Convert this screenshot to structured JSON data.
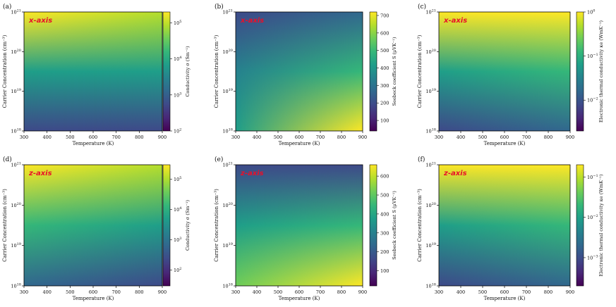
{
  "colors": {
    "viridis": [
      "#440154",
      "#482878",
      "#3e4a89",
      "#31688e",
      "#26828e",
      "#1f9e89",
      "#35b779",
      "#6dcd59",
      "#b4de2c",
      "#fde725"
    ],
    "tag": "#e8102a"
  },
  "shared": {
    "xlabel": "Temperature (K)",
    "ylabel": "Carrier Concentration (cm⁻³)",
    "xticks": [
      "300",
      "400",
      "500",
      "600",
      "700",
      "800",
      "900"
    ],
    "ytick_base": "10",
    "ytick_exponents": [
      "18",
      "19",
      "20",
      "21"
    ]
  },
  "chart_data": [
    {
      "type": "heatmap",
      "panel": "(a)",
      "tag": "x-axis",
      "x": [
        300,
        900
      ],
      "y_log10": [
        18,
        21
      ],
      "title": "",
      "xlabel": "Temperature (K)",
      "ylabel": "Carrier Concentration (cm⁻³)",
      "colorbar": {
        "label": "Conductivity σ (Sm⁻¹)",
        "scale": "log",
        "range": [
          100,
          200000
        ],
        "ticks": [
          {
            "value": 100,
            "base": "10",
            "exp": "2"
          },
          {
            "value": 1000,
            "base": "10",
            "exp": "3"
          },
          {
            "value": 10000,
            "base": "10",
            "exp": "4"
          },
          {
            "value": 100000,
            "base": "10",
            "exp": "5"
          }
        ]
      },
      "field": {
        "color_at": {
          "bottom_left": 0.25,
          "bottom_right": 0.18,
          "top_left": 0.97,
          "top_right": 0.93
        }
      }
    },
    {
      "type": "heatmap",
      "panel": "(b)",
      "tag": "x-axis",
      "x": [
        300,
        900
      ],
      "y_log10": [
        18,
        21
      ],
      "title": "",
      "xlabel": "Temperature (K)",
      "ylabel": "Carrier Concentration (cm⁻³)",
      "colorbar": {
        "label": "Seebeck coefficient S (μVK⁻¹)",
        "scale": "linear",
        "range": [
          40,
          720
        ],
        "ticks": [
          {
            "value": 100,
            "text": "100"
          },
          {
            "value": 200,
            "text": "200"
          },
          {
            "value": 300,
            "text": "300"
          },
          {
            "value": 400,
            "text": "400"
          },
          {
            "value": 500,
            "text": "500"
          },
          {
            "value": 600,
            "text": "600"
          },
          {
            "value": 700,
            "text": "700"
          }
        ]
      },
      "field": {
        "color_at": {
          "bottom_left": 0.6,
          "bottom_right": 0.98,
          "top_left": 0.22,
          "top_right": 0.3
        }
      }
    },
    {
      "type": "heatmap",
      "panel": "(c)",
      "tag": "x-axis",
      "x": [
        300,
        900
      ],
      "y_log10": [
        18,
        21
      ],
      "title": "",
      "xlabel": "Temperature (K)",
      "ylabel": "Carrier Concentration (cm⁻³)",
      "colorbar": {
        "label": "Electronic thermal conductivity κe (WmK⁻¹)",
        "scale": "log",
        "range": [
          0.002,
          1.0
        ],
        "ticks": [
          {
            "value": 0.01,
            "base": "10",
            "exp": "−2"
          },
          {
            "value": 0.1,
            "base": "10",
            "exp": "−1"
          },
          {
            "value": 1.0,
            "base": "10",
            "exp": "0"
          }
        ]
      },
      "field": {
        "color_at": {
          "bottom_left": 0.22,
          "bottom_right": 0.28,
          "top_left": 0.97,
          "top_right": 0.97
        }
      }
    },
    {
      "type": "heatmap",
      "panel": "(d)",
      "tag": "z-axis",
      "x": [
        300,
        900
      ],
      "y_log10": [
        18,
        21
      ],
      "title": "",
      "xlabel": "Temperature (K)",
      "ylabel": "Carrier Concentration (cm⁻³)",
      "colorbar": {
        "label": "Conductivity σ (Sm⁻¹)",
        "scale": "log",
        "range": [
          30,
          300000
        ],
        "ticks": [
          {
            "value": 100,
            "base": "10",
            "exp": "2"
          },
          {
            "value": 1000,
            "base": "10",
            "exp": "3"
          },
          {
            "value": 10000,
            "base": "10",
            "exp": "4"
          },
          {
            "value": 100000,
            "base": "10",
            "exp": "5"
          }
        ]
      },
      "field": {
        "color_at": {
          "bottom_left": 0.32,
          "bottom_right": 0.22,
          "top_left": 0.97,
          "top_right": 0.92
        }
      }
    },
    {
      "type": "heatmap",
      "panel": "(e)",
      "tag": "z-axis",
      "x": [
        300,
        900
      ],
      "y_log10": [
        18,
        21
      ],
      "title": "",
      "xlabel": "Temperature (K)",
      "ylabel": "Carrier Concentration (cm⁻³)",
      "colorbar": {
        "label": "Seebeck coefficient S (μVK⁻¹)",
        "scale": "linear",
        "range": [
          20,
          660
        ],
        "ticks": [
          {
            "value": 100,
            "text": "100"
          },
          {
            "value": 200,
            "text": "200"
          },
          {
            "value": 300,
            "text": "300"
          },
          {
            "value": 400,
            "text": "400"
          },
          {
            "value": 500,
            "text": "500"
          },
          {
            "value": 600,
            "text": "600"
          }
        ]
      },
      "field": {
        "color_at": {
          "bottom_left": 0.82,
          "bottom_right": 0.98,
          "top_left": 0.2,
          "top_right": 0.25
        }
      }
    },
    {
      "type": "heatmap",
      "panel": "(f)",
      "tag": "z-axis",
      "x": [
        300,
        900
      ],
      "y_log10": [
        18,
        21
      ],
      "title": "",
      "xlabel": "Temperature (K)",
      "ylabel": "Carrier Concentration (cm⁻³)",
      "colorbar": {
        "label": "Electronic thermal conductivity κe (WmK⁻¹)",
        "scale": "log",
        "range": [
          0.0002,
          0.2
        ],
        "ticks": [
          {
            "value": 0.001,
            "base": "10",
            "exp": "−3"
          },
          {
            "value": 0.01,
            "base": "10",
            "exp": "−2"
          },
          {
            "value": 0.1,
            "base": "10",
            "exp": "−1"
          }
        ]
      },
      "field": {
        "color_at": {
          "bottom_left": 0.22,
          "bottom_right": 0.28,
          "top_left": 0.97,
          "top_right": 0.97
        }
      }
    }
  ]
}
